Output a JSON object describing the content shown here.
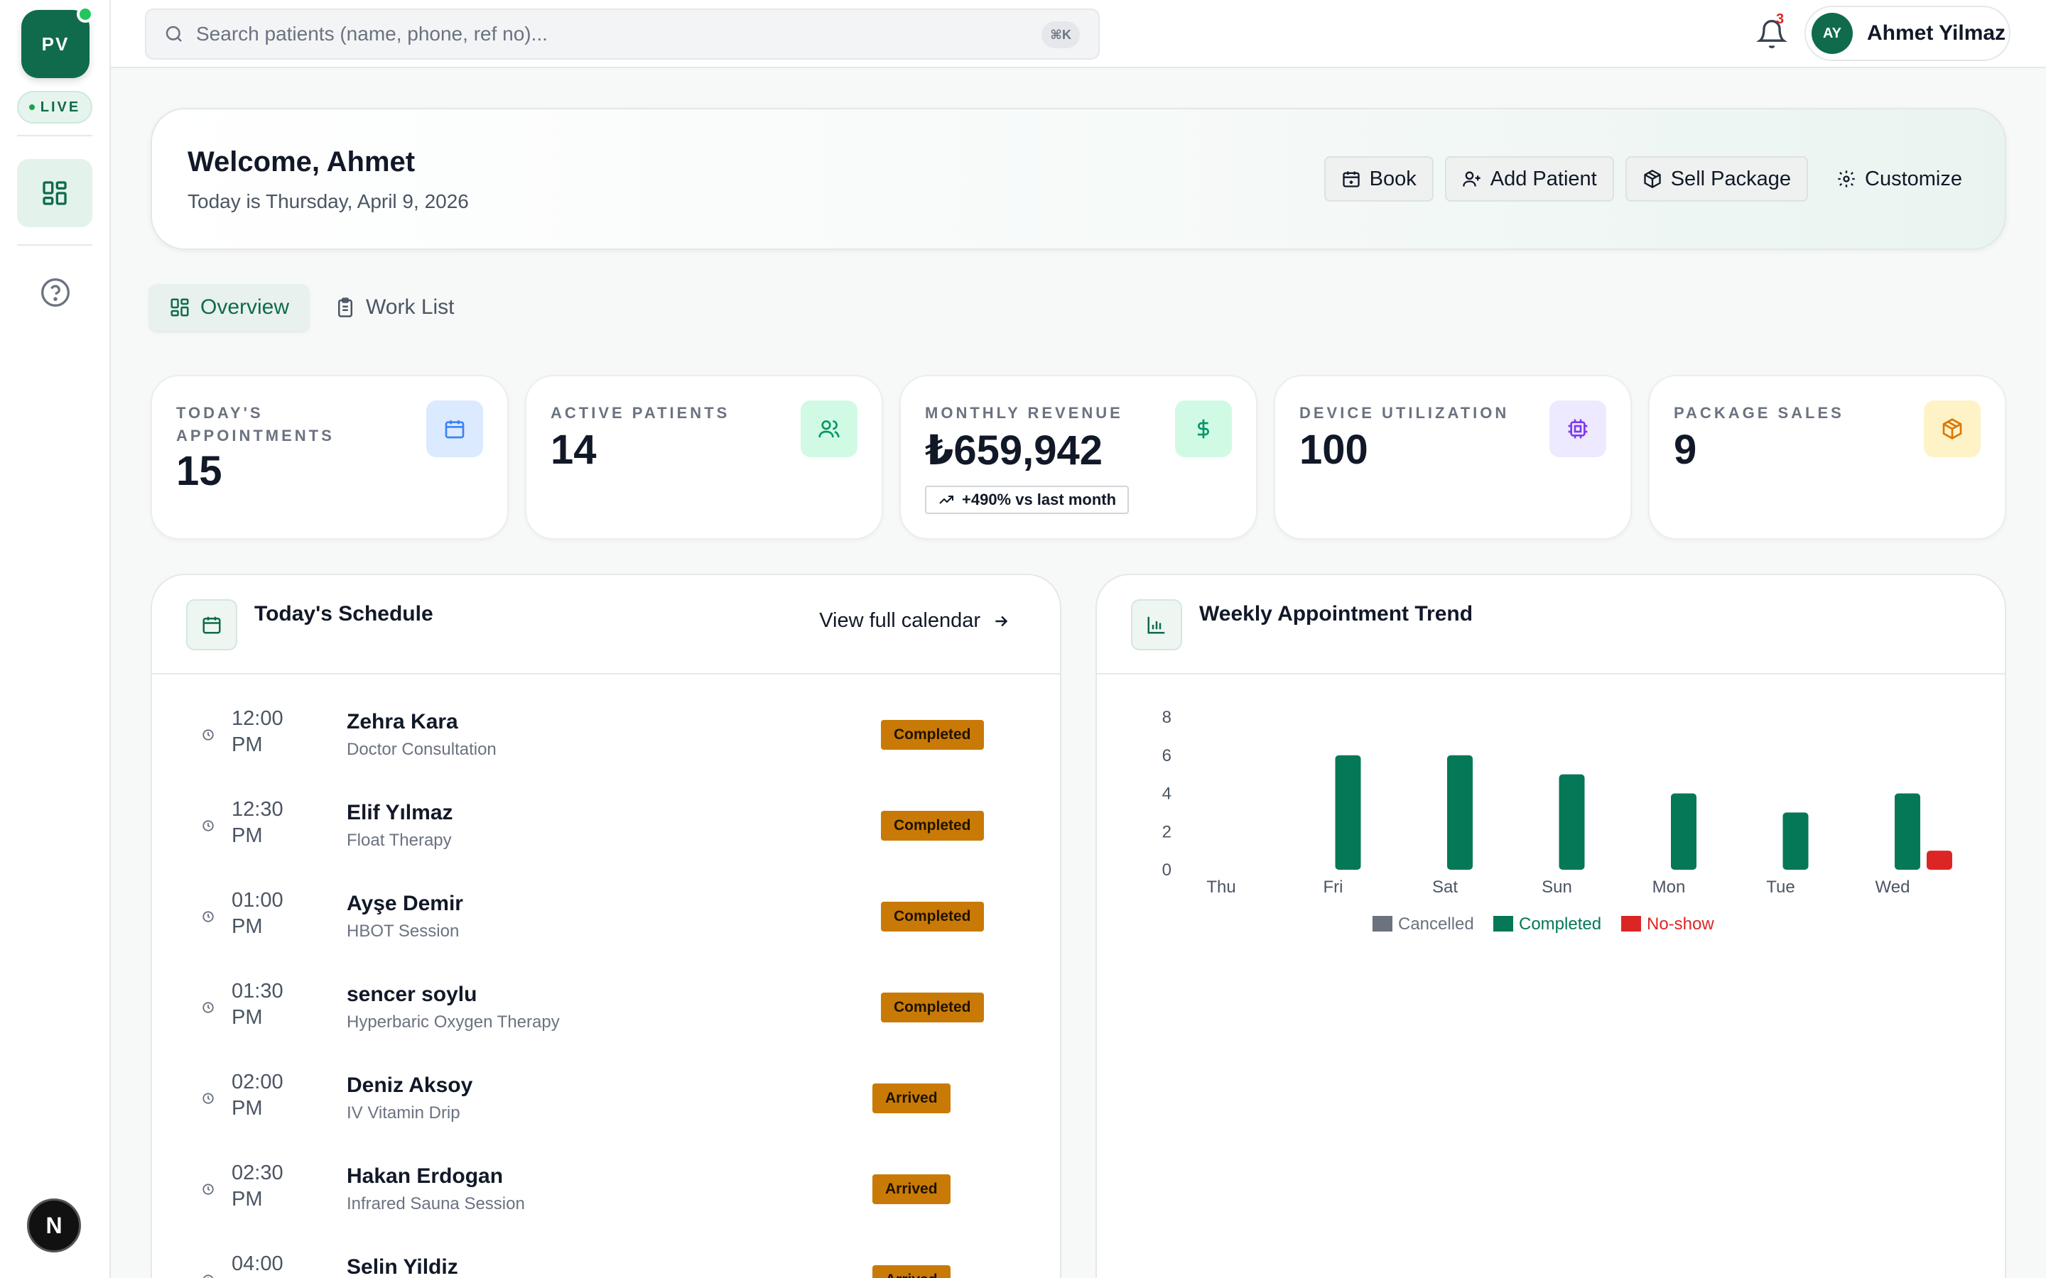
{
  "sidebar": {
    "logo_text": "PV",
    "live_label": "LIVE",
    "avatar_letter": "N"
  },
  "topbar": {
    "search_placeholder": "Search patients (name, phone, ref no)...",
    "search_shortcut": "⌘K",
    "notification_count": "3",
    "user_initials": "AY",
    "user_name": "Ahmet Yilmaz"
  },
  "welcome": {
    "title": "Welcome, Ahmet",
    "subtitle": "Today is Thursday, April 9, 2026",
    "actions": [
      {
        "label": "Book",
        "icon": "calendar-plus-icon"
      },
      {
        "label": "Add Patient",
        "icon": "user-plus-icon"
      },
      {
        "label": "Sell Package",
        "icon": "package-icon"
      },
      {
        "label": "Customize",
        "icon": "gear-icon"
      }
    ]
  },
  "tabs": [
    {
      "label": "Overview",
      "icon": "grid-icon",
      "active": true
    },
    {
      "label": "Work List",
      "icon": "clipboard-icon",
      "active": false
    }
  ],
  "stats": [
    {
      "label": "TODAY'S APPOINTMENTS",
      "value": "15",
      "icon": "calendar-icon",
      "color": "#3b82f6",
      "bg": "#dbeafe"
    },
    {
      "label": "ACTIVE PATIENTS",
      "value": "14",
      "icon": "users-icon",
      "color": "#059669",
      "bg": "#d1fae5"
    },
    {
      "label": "MONTHLY REVENUE",
      "value": "₺659,942",
      "trend": "+490% vs last month",
      "icon": "dollar-icon",
      "color": "#059669",
      "bg": "#d1fae5"
    },
    {
      "label": "DEVICE UTILIZATION",
      "value": "100",
      "icon": "cpu-icon",
      "color": "#7c3aed",
      "bg": "#ede9fe"
    },
    {
      "label": "PACKAGE SALES",
      "value": "9",
      "icon": "box-icon",
      "color": "#d97706",
      "bg": "#fef3c7"
    }
  ],
  "schedule": {
    "title": "Today's Schedule",
    "link": "View full calendar",
    "items": [
      {
        "time": "12:00 PM",
        "name": "Zehra Kara",
        "service": "Doctor Consultation",
        "status": "Completed"
      },
      {
        "time": "12:30 PM",
        "name": "Elif Yılmaz",
        "service": "Float Therapy",
        "status": "Completed"
      },
      {
        "time": "01:00 PM",
        "name": "Ayşe Demir",
        "service": "HBOT Session",
        "status": "Completed"
      },
      {
        "time": "01:30 PM",
        "name": "sencer soylu",
        "service": "Hyperbaric Oxygen Therapy",
        "status": "Completed"
      },
      {
        "time": "02:00 PM",
        "name": "Deniz Aksoy",
        "service": "IV Vitamin Drip",
        "status": "Arrived"
      },
      {
        "time": "02:30 PM",
        "name": "Hakan Erdogan",
        "service": "Infrared Sauna Session",
        "status": "Arrived"
      },
      {
        "time": "04:00",
        "name": "Selin Yildiz",
        "service": "",
        "status": "Arrived"
      }
    ]
  },
  "trend": {
    "title": "Weekly Appointment Trend"
  },
  "chart_data": {
    "type": "bar",
    "title": "Weekly Appointment Trend",
    "categories": [
      "Thu",
      "Fri",
      "Sat",
      "Sun",
      "Mon",
      "Tue",
      "Wed"
    ],
    "series": [
      {
        "name": "Cancelled",
        "color": "#6b7280",
        "values": [
          0,
          0,
          0,
          0,
          0,
          0,
          0
        ]
      },
      {
        "name": "Completed",
        "color": "#047857",
        "values": [
          0,
          6,
          6,
          5,
          4,
          3,
          4
        ]
      },
      {
        "name": "No-show",
        "color": "#dc2626",
        "values": [
          0,
          0,
          0,
          0,
          0,
          0,
          1
        ]
      }
    ],
    "yticks": [
      0,
      2,
      4,
      6,
      8
    ],
    "ylim": [
      0,
      8
    ],
    "legend": "bottom",
    "grid": false
  }
}
